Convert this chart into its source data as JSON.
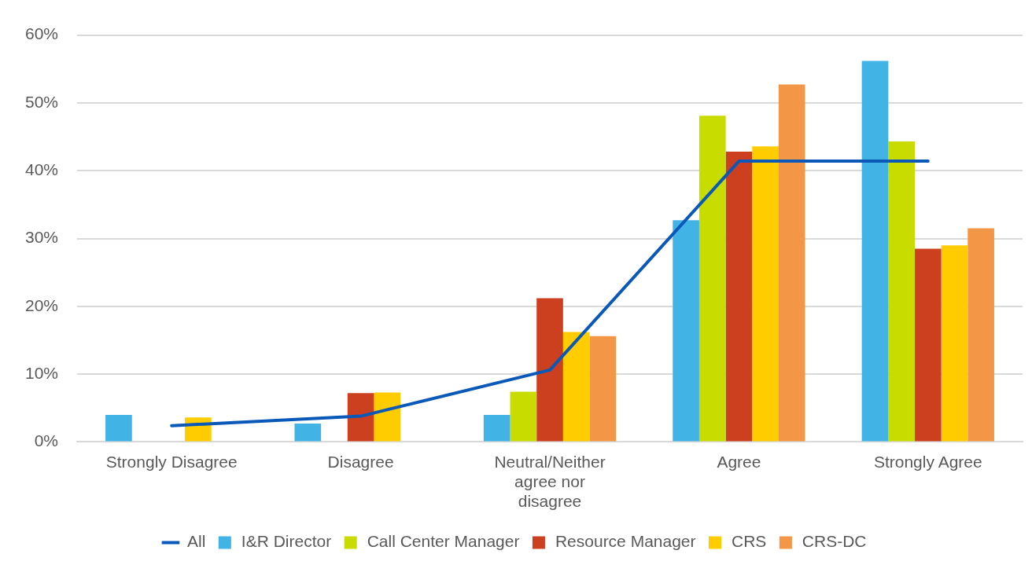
{
  "chart_data": {
    "type": "bar",
    "categories": [
      "Strongly Disagree",
      "Disagree",
      "Neutral/Neither agree nor disagree",
      "Agree",
      "Strongly Agree"
    ],
    "series": [
      {
        "name": "I&R Director",
        "color": "#41b3e5",
        "values": [
          4.0,
          2.7,
          4.0,
          32.7,
          56.2
        ]
      },
      {
        "name": "Call Center Manager",
        "color": "#c8dc00",
        "values": [
          0,
          0,
          7.4,
          48.1,
          44.3
        ]
      },
      {
        "name": "Resource Manager",
        "color": "#cc4020",
        "values": [
          0,
          7.2,
          21.2,
          42.8,
          28.5
        ]
      },
      {
        "name": "CRS",
        "color": "#ffcc00",
        "values": [
          3.6,
          7.3,
          16.2,
          43.6,
          29.0
        ]
      },
      {
        "name": "CRS-DC",
        "color": "#f39646",
        "values": [
          0,
          0,
          15.6,
          52.7,
          31.5
        ]
      },
      {
        "name": "All",
        "type": "line",
        "color": "#0a58b8",
        "values": [
          2.4,
          3.8,
          10.6,
          41.4,
          41.4
        ]
      }
    ],
    "ylim": [
      0,
      60
    ],
    "yticks": [
      {
        "value": 0,
        "label": "0%"
      },
      {
        "value": 10,
        "label": "10%"
      },
      {
        "value": 20,
        "label": "20%"
      },
      {
        "value": 30,
        "label": "30%"
      },
      {
        "value": 40,
        "label": "40%"
      },
      {
        "value": 50,
        "label": "50%"
      },
      {
        "value": 60,
        "label": "60%"
      }
    ],
    "grid": "y",
    "legend": "bottom",
    "marker": "none"
  }
}
